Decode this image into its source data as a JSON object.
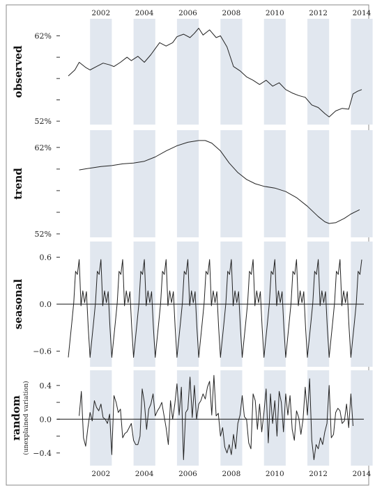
{
  "chart_data": {
    "type": "line",
    "title": "",
    "x_range": [
      2001.0,
      2014.5
    ],
    "band_color": "#e1e7ef",
    "line_color": "#222222",
    "frame_color": "#888888",
    "year_ticks": [
      "2002",
      "2004",
      "2006",
      "2008",
      "2010",
      "2012",
      "2014"
    ],
    "panels": [
      {
        "key": "observed",
        "label": "observed",
        "sublabel": "",
        "ylim": [
          51.6,
          64.0
        ],
        "ticks": [
          {
            "v": 62,
            "label": "62%"
          },
          {
            "v": 59.5,
            "label": ""
          },
          {
            "v": 57,
            "label": ""
          },
          {
            "v": 54.5,
            "label": ""
          },
          {
            "v": 52,
            "label": "52%"
          }
        ],
        "zero_line": false,
        "series": [
          [
            2001.0,
            57.3
          ],
          [
            2001.3,
            58.0
          ],
          [
            2001.5,
            58.9
          ],
          [
            2001.8,
            58.3
          ],
          [
            2002.0,
            58.0
          ],
          [
            2002.3,
            58.4
          ],
          [
            2002.6,
            58.8
          ],
          [
            2002.9,
            58.6
          ],
          [
            2003.1,
            58.4
          ],
          [
            2003.4,
            58.9
          ],
          [
            2003.7,
            59.5
          ],
          [
            2003.9,
            59.1
          ],
          [
            2004.2,
            59.6
          ],
          [
            2004.5,
            58.9
          ],
          [
            2004.8,
            59.8
          ],
          [
            2005.0,
            60.5
          ],
          [
            2005.2,
            61.2
          ],
          [
            2005.5,
            60.8
          ],
          [
            2005.8,
            61.2
          ],
          [
            2006.0,
            61.9
          ],
          [
            2006.3,
            62.2
          ],
          [
            2006.6,
            61.8
          ],
          [
            2006.8,
            62.3
          ],
          [
            2007.0,
            62.9
          ],
          [
            2007.2,
            62.1
          ],
          [
            2007.5,
            62.7
          ],
          [
            2007.8,
            61.8
          ],
          [
            2008.0,
            62.0
          ],
          [
            2008.3,
            60.7
          ],
          [
            2008.6,
            58.4
          ],
          [
            2008.9,
            57.9
          ],
          [
            2009.2,
            57.2
          ],
          [
            2009.5,
            56.8
          ],
          [
            2009.8,
            56.3
          ],
          [
            2010.1,
            56.8
          ],
          [
            2010.4,
            56.1
          ],
          [
            2010.7,
            56.5
          ],
          [
            2011.0,
            55.7
          ],
          [
            2011.3,
            55.3
          ],
          [
            2011.6,
            55.0
          ],
          [
            2011.9,
            54.8
          ],
          [
            2012.2,
            53.9
          ],
          [
            2012.5,
            53.6
          ],
          [
            2012.8,
            52.9
          ],
          [
            2013.0,
            52.5
          ],
          [
            2013.3,
            53.2
          ],
          [
            2013.6,
            53.5
          ],
          [
            2013.9,
            53.4
          ],
          [
            2014.1,
            55.2
          ],
          [
            2014.3,
            55.5
          ],
          [
            2014.5,
            55.7
          ]
        ]
      },
      {
        "key": "trend",
        "label": "trend",
        "sublabel": "",
        "ylim": [
          51.6,
          64.0
        ],
        "ticks": [
          {
            "v": 62,
            "label": "62%"
          },
          {
            "v": 59.5,
            "label": ""
          },
          {
            "v": 57,
            "label": ""
          },
          {
            "v": 54.5,
            "label": ""
          },
          {
            "v": 52,
            "label": "52%"
          }
        ],
        "zero_line": false,
        "series": [
          [
            2001.5,
            59.4
          ],
          [
            2002.0,
            59.6
          ],
          [
            2002.5,
            59.8
          ],
          [
            2003.0,
            59.9
          ],
          [
            2003.5,
            60.1
          ],
          [
            2004.0,
            60.2
          ],
          [
            2004.5,
            60.4
          ],
          [
            2005.0,
            60.9
          ],
          [
            2005.5,
            61.6
          ],
          [
            2006.0,
            62.2
          ],
          [
            2006.5,
            62.6
          ],
          [
            2007.0,
            62.8
          ],
          [
            2007.3,
            62.8
          ],
          [
            2007.6,
            62.5
          ],
          [
            2008.0,
            61.6
          ],
          [
            2008.4,
            60.2
          ],
          [
            2008.8,
            59.1
          ],
          [
            2009.2,
            58.3
          ],
          [
            2009.6,
            57.8
          ],
          [
            2010.0,
            57.5
          ],
          [
            2010.5,
            57.3
          ],
          [
            2011.0,
            56.9
          ],
          [
            2011.5,
            56.2
          ],
          [
            2012.0,
            55.2
          ],
          [
            2012.5,
            54.0
          ],
          [
            2012.8,
            53.4
          ],
          [
            2013.0,
            53.2
          ],
          [
            2013.3,
            53.3
          ],
          [
            2013.7,
            53.8
          ],
          [
            2014.0,
            54.3
          ],
          [
            2014.4,
            54.8
          ]
        ]
      },
      {
        "key": "seasonal",
        "label": "seasonal",
        "sublabel": "",
        "ylim": [
          -0.8,
          0.8
        ],
        "ticks": [
          {
            "v": 0.6,
            "label": "0.6"
          },
          {
            "v": 0.0,
            "label": "0.0"
          },
          {
            "v": -0.6,
            "label": "−0.6"
          }
        ],
        "zero_line": true,
        "pattern": [
          -0.68,
          -0.45,
          -0.22,
          0.02,
          0.42,
          0.38,
          0.57,
          -0.02,
          0.17,
          0.02,
          0.16,
          -0.3
        ],
        "x_start": 2001.0,
        "x_end": 2014.5
      },
      {
        "key": "random",
        "label": "random",
        "sublabel": "(unexplained variation)",
        "ylim": [
          -0.55,
          0.58
        ],
        "ticks": [
          {
            "v": 0.4,
            "label": "0.4"
          },
          {
            "v": 0.2,
            "label": ""
          },
          {
            "v": 0.0,
            "label": "0.0"
          },
          {
            "v": -0.2,
            "label": ""
          },
          {
            "v": -0.4,
            "label": "−0.4"
          }
        ],
        "zero_line": true,
        "series": [
          [
            2001.5,
            0.04
          ],
          [
            2001.6,
            0.33
          ],
          [
            2001.7,
            -0.22
          ],
          [
            2001.8,
            -0.32
          ],
          [
            2001.9,
            -0.1
          ],
          [
            2002.0,
            0.08
          ],
          [
            2002.1,
            -0.02
          ],
          [
            2002.2,
            0.22
          ],
          [
            2002.3,
            0.14
          ],
          [
            2002.4,
            0.1
          ],
          [
            2002.5,
            0.18
          ],
          [
            2002.6,
            0.02
          ],
          [
            2002.7,
            0.0
          ],
          [
            2002.8,
            -0.05
          ],
          [
            2002.9,
            0.06
          ],
          [
            2003.0,
            -0.42
          ],
          [
            2003.1,
            0.28
          ],
          [
            2003.2,
            0.2
          ],
          [
            2003.3,
            0.08
          ],
          [
            2003.4,
            0.12
          ],
          [
            2003.5,
            -0.22
          ],
          [
            2003.6,
            -0.17
          ],
          [
            2003.7,
            -0.15
          ],
          [
            2003.8,
            -0.1
          ],
          [
            2003.9,
            -0.05
          ],
          [
            2004.0,
            -0.25
          ],
          [
            2004.1,
            -0.3
          ],
          [
            2004.2,
            -0.3
          ],
          [
            2004.3,
            -0.2
          ],
          [
            2004.4,
            0.36
          ],
          [
            2004.5,
            0.2
          ],
          [
            2004.6,
            -0.12
          ],
          [
            2004.7,
            0.12
          ],
          [
            2004.8,
            0.18
          ],
          [
            2004.9,
            0.3
          ],
          [
            2005.0,
            0.04
          ],
          [
            2005.1,
            0.1
          ],
          [
            2005.2,
            0.14
          ],
          [
            2005.3,
            0.2
          ],
          [
            2005.4,
            0.05
          ],
          [
            2005.5,
            -0.1
          ],
          [
            2005.6,
            -0.3
          ],
          [
            2005.7,
            0.22
          ],
          [
            2005.8,
            0.0
          ],
          [
            2005.9,
            0.18
          ],
          [
            2006.0,
            0.42
          ],
          [
            2006.1,
            0.05
          ],
          [
            2006.2,
            0.38
          ],
          [
            2006.3,
            -0.48
          ],
          [
            2006.4,
            0.08
          ],
          [
            2006.5,
            0.12
          ],
          [
            2006.6,
            0.5
          ],
          [
            2006.7,
            0.02
          ],
          [
            2006.8,
            0.4
          ],
          [
            2006.9,
            0.0
          ],
          [
            2007.0,
            0.18
          ],
          [
            2007.1,
            0.22
          ],
          [
            2007.2,
            0.3
          ],
          [
            2007.3,
            0.24
          ],
          [
            2007.4,
            0.38
          ],
          [
            2007.5,
            0.45
          ],
          [
            2007.6,
            0.05
          ],
          [
            2007.7,
            0.52
          ],
          [
            2007.8,
            0.04
          ],
          [
            2007.9,
            0.07
          ],
          [
            2008.0,
            -0.2
          ],
          [
            2008.1,
            -0.1
          ],
          [
            2008.2,
            -0.33
          ],
          [
            2008.3,
            -0.4
          ],
          [
            2008.4,
            -0.3
          ],
          [
            2008.5,
            -0.42
          ],
          [
            2008.6,
            -0.18
          ],
          [
            2008.7,
            -0.35
          ],
          [
            2008.8,
            -0.05
          ],
          [
            2008.9,
            0.05
          ],
          [
            2009.0,
            0.28
          ],
          [
            2009.1,
            0.03
          ],
          [
            2009.2,
            0.0
          ],
          [
            2009.3,
            -0.28
          ],
          [
            2009.4,
            -0.35
          ],
          [
            2009.5,
            0.3
          ],
          [
            2009.6,
            0.22
          ],
          [
            2009.7,
            -0.12
          ],
          [
            2009.8,
            0.18
          ],
          [
            2009.9,
            -0.15
          ],
          [
            2010.0,
            0.08
          ],
          [
            2010.1,
            0.36
          ],
          [
            2010.2,
            -0.28
          ],
          [
            2010.3,
            0.3
          ],
          [
            2010.4,
            -0.05
          ],
          [
            2010.5,
            0.22
          ],
          [
            2010.6,
            -0.2
          ],
          [
            2010.7,
            0.33
          ],
          [
            2010.8,
            0.2
          ],
          [
            2010.9,
            -0.15
          ],
          [
            2011.0,
            0.3
          ],
          [
            2011.1,
            0.05
          ],
          [
            2011.2,
            0.28
          ],
          [
            2011.3,
            -0.12
          ],
          [
            2011.4,
            -0.25
          ],
          [
            2011.5,
            0.1
          ],
          [
            2011.6,
            0.02
          ],
          [
            2011.7,
            -0.18
          ],
          [
            2011.8,
            0.0
          ],
          [
            2011.9,
            0.38
          ],
          [
            2012.0,
            0.05
          ],
          [
            2012.1,
            0.48
          ],
          [
            2012.2,
            -0.25
          ],
          [
            2012.3,
            -0.48
          ],
          [
            2012.4,
            -0.3
          ],
          [
            2012.5,
            -0.35
          ],
          [
            2012.6,
            -0.22
          ],
          [
            2012.7,
            -0.3
          ],
          [
            2012.8,
            -0.15
          ],
          [
            2012.9,
            -0.05
          ],
          [
            2013.0,
            0.4
          ],
          [
            2013.1,
            -0.22
          ],
          [
            2013.2,
            -0.18
          ],
          [
            2013.3,
            0.08
          ],
          [
            2013.4,
            0.13
          ],
          [
            2013.5,
            0.1
          ],
          [
            2013.6,
            -0.05
          ],
          [
            2013.7,
            -0.02
          ],
          [
            2013.8,
            0.18
          ],
          [
            2013.9,
            -0.1
          ],
          [
            2014.0,
            0.3
          ],
          [
            2014.1,
            -0.08
          ]
        ]
      }
    ]
  }
}
